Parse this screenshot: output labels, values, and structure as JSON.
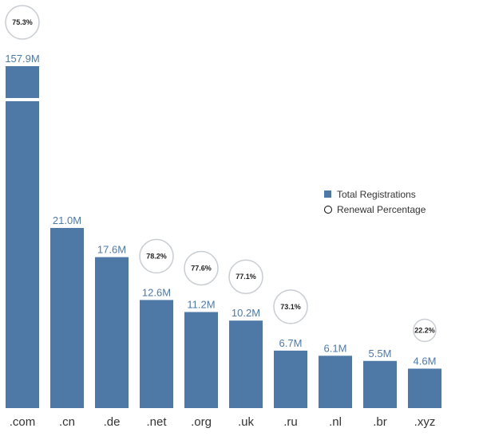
{
  "chart_data": {
    "type": "bar",
    "categories": [
      ".com",
      ".cn",
      ".de",
      ".net",
      ".org",
      ".uk",
      ".ru",
      ".nl",
      ".br",
      ".xyz"
    ],
    "series": [
      {
        "name": "Total Registrations",
        "values": [
          157.9,
          21.0,
          17.6,
          12.6,
          11.2,
          10.2,
          6.7,
          6.1,
          5.5,
          4.6
        ],
        "labels": [
          "157.9M",
          "21.0M",
          "17.6M",
          "12.6M",
          "11.2M",
          "10.2M",
          "6.7M",
          "6.1M",
          "5.5M",
          "4.6M"
        ]
      },
      {
        "name": "Renewal Percentage",
        "values": [
          75.3,
          null,
          null,
          78.2,
          77.6,
          77.1,
          73.1,
          null,
          null,
          22.2
        ],
        "labels": [
          "75.3%",
          null,
          null,
          "78.2%",
          "77.6%",
          "77.1%",
          "73.1%",
          null,
          null,
          "22.2%"
        ]
      }
    ],
    "axis_break": ".com bar is truncated",
    "legend": {
      "position": "right",
      "items": [
        {
          "label": "Total Registrations",
          "marker": "square"
        },
        {
          "label": "Renewal Percentage",
          "marker": "circle"
        }
      ]
    },
    "colors": {
      "bar": "#4e79a7",
      "label": "#4e79a7",
      "circle_stroke": "#c8cdd3"
    }
  }
}
